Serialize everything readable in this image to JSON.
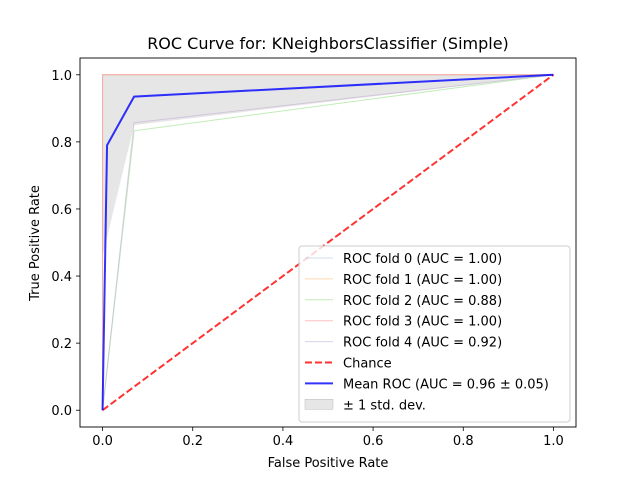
{
  "chart_data": {
    "type": "line",
    "title": "ROC Curve for: KNeighborsClassifier (Simple)",
    "xlabel": "False Positive Rate",
    "ylabel": "True Positive Rate",
    "xlim": [
      -0.05,
      1.05
    ],
    "ylim": [
      -0.05,
      1.05
    ],
    "xticks": [
      "0.0",
      "0.2",
      "0.4",
      "0.6",
      "0.8",
      "1.0"
    ],
    "yticks": [
      "0.0",
      "0.2",
      "0.4",
      "0.6",
      "0.8",
      "1.0"
    ],
    "grid": false,
    "legend_position": "lower right",
    "series": [
      {
        "name": "ROC fold 0 (AUC = 1.00)",
        "color": "#aec7e8",
        "style": "solid",
        "x": [
          0.0,
          0.0,
          1.0
        ],
        "y": [
          0.0,
          1.0,
          1.0
        ]
      },
      {
        "name": "ROC fold 1 (AUC = 1.00)",
        "color": "#ffbb78",
        "style": "solid",
        "x": [
          0.0,
          0.0,
          1.0
        ],
        "y": [
          0.0,
          1.0,
          1.0
        ]
      },
      {
        "name": "ROC fold 2 (AUC = 0.88)",
        "color": "#98df8a",
        "style": "solid",
        "x": [
          0.0,
          0.07,
          1.0
        ],
        "y": [
          0.0,
          0.833,
          1.0
        ]
      },
      {
        "name": "ROC fold 3 (AUC = 1.00)",
        "color": "#ff9896",
        "style": "solid",
        "x": [
          0.0,
          0.0,
          1.0
        ],
        "y": [
          0.0,
          1.0,
          1.0
        ]
      },
      {
        "name": "ROC fold 4 (AUC = 0.92)",
        "color": "#c5b0d5",
        "style": "solid",
        "x": [
          0.0,
          0.07,
          1.0
        ],
        "y": [
          0.0,
          0.857,
          1.0
        ]
      },
      {
        "name": "Chance",
        "color": "#ff0000",
        "style": "dashed",
        "x": [
          0.0,
          1.0
        ],
        "y": [
          0.0,
          1.0
        ]
      },
      {
        "name": "Mean ROC (AUC = 0.96 ± 0.05)",
        "color": "#0000ff",
        "style": "solid",
        "x": [
          0.0,
          0.01,
          0.07,
          1.0
        ],
        "y": [
          0.0,
          0.79,
          0.935,
          1.0
        ]
      }
    ],
    "std_band": {
      "name": "± 1 std. dev.",
      "color": "#808080",
      "x": [
        0.0,
        0.0,
        0.07,
        1.0
      ],
      "upper": [
        0.0,
        1.0,
        1.0,
        1.0
      ],
      "lower": [
        0.0,
        0.46,
        0.85,
        1.0
      ]
    }
  }
}
